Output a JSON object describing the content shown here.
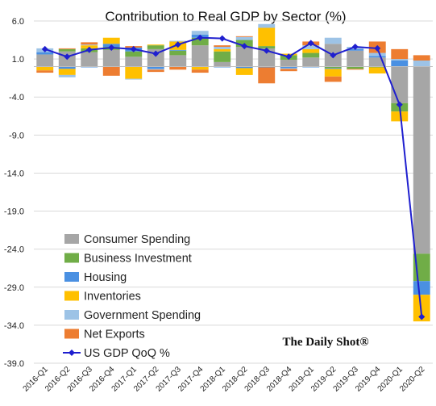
{
  "chart_data": {
    "type": "bar",
    "subtype": "stacked bar with line overlay",
    "title": "Contribution to Real GDP by Sector (%)",
    "xlabel": "",
    "ylabel": "",
    "ylim": [
      -39,
      6
    ],
    "yticks": [
      "6.0",
      "1.0",
      "-4.0",
      "-9.0",
      "-14.0",
      "-19.0",
      "-24.0",
      "-29.0",
      "-34.0",
      "-39.0"
    ],
    "ytick_values": [
      6,
      1,
      -4,
      -9,
      -14,
      -19,
      -24,
      -29,
      -34,
      -39
    ],
    "categories": [
      "2016-Q1",
      "2016-Q2",
      "2016-Q3",
      "2016-Q4",
      "2017-Q1",
      "2017-Q2",
      "2017-Q3",
      "2017-Q4",
      "2018-Q1",
      "2018-Q2",
      "2018-Q3",
      "2018-Q4",
      "2019-Q1",
      "2019-Q2",
      "2019-Q3",
      "2019-Q4",
      "2020-Q1",
      "2020-Q2"
    ],
    "series": [
      {
        "name": "Consumer Spending",
        "type": "bar",
        "color": "#a6a6a6",
        "values": [
          1.6,
          2.0,
          1.9,
          2.2,
          1.3,
          2.3,
          1.5,
          2.8,
          0.6,
          2.6,
          2.4,
          0.9,
          1.2,
          3.0,
          2.1,
          1.2,
          -4.8,
          -24.6
        ]
      },
      {
        "name": "Business Investment",
        "type": "bar",
        "color": "#70ad47",
        "values": [
          0.0,
          0.3,
          0.5,
          0.4,
          0.7,
          0.5,
          0.6,
          1.0,
          1.4,
          0.9,
          0.3,
          0.6,
          0.6,
          -0.2,
          -0.3,
          -0.1,
          -1.1,
          -3.6
        ]
      },
      {
        "name": "Housing",
        "type": "bar",
        "color": "#4a90e2",
        "values": [
          0.3,
          -0.3,
          -0.1,
          0.4,
          0.5,
          -0.3,
          0.1,
          0.4,
          -0.1,
          -0.2,
          -0.1,
          -0.2,
          -0.1,
          -0.1,
          0.2,
          0.2,
          0.8,
          -1.8
        ]
      },
      {
        "name": "Inventories",
        "type": "bar",
        "color": "#ffc000",
        "values": [
          -0.5,
          -0.8,
          0.4,
          0.8,
          -1.6,
          0.1,
          1.1,
          -0.4,
          0.3,
          -0.9,
          2.4,
          0.2,
          0.5,
          -1.0,
          0.0,
          -0.8,
          -1.3,
          -3.5
        ]
      },
      {
        "name": "Government Spending",
        "type": "bar",
        "color": "#9dc3e6",
        "values": [
          0.5,
          -0.3,
          0.1,
          0.0,
          -0.1,
          -0.1,
          0.1,
          0.5,
          0.3,
          0.4,
          0.5,
          -0.1,
          0.5,
          0.8,
          0.3,
          0.4,
          0.2,
          0.8
        ]
      },
      {
        "name": "Net Exports",
        "type": "bar",
        "color": "#ed7d31",
        "values": [
          -0.3,
          0.1,
          0.3,
          -1.2,
          0.2,
          -0.3,
          -0.4,
          -0.4,
          0.2,
          0.1,
          -2.1,
          -0.3,
          0.5,
          -0.7,
          -0.1,
          1.5,
          1.3,
          0.7
        ]
      },
      {
        "name": "US GDP QoQ %",
        "type": "line",
        "color": "#1f1fcf",
        "values": [
          2.3,
          1.3,
          2.2,
          2.5,
          2.3,
          1.7,
          2.9,
          3.8,
          3.7,
          2.7,
          2.1,
          1.3,
          3.1,
          1.5,
          2.6,
          2.4,
          -5.0,
          -32.9
        ]
      }
    ],
    "legend": {
      "placement": "bottom-left",
      "entries": [
        "Consumer Spending",
        "Business Investment",
        "Housing",
        "Inventories",
        "Government Spending",
        "Net Exports",
        "US GDP QoQ %"
      ]
    },
    "grid": {
      "horizontal": true,
      "vertical": false
    },
    "annotations": [
      "The Daily Shot®"
    ]
  }
}
